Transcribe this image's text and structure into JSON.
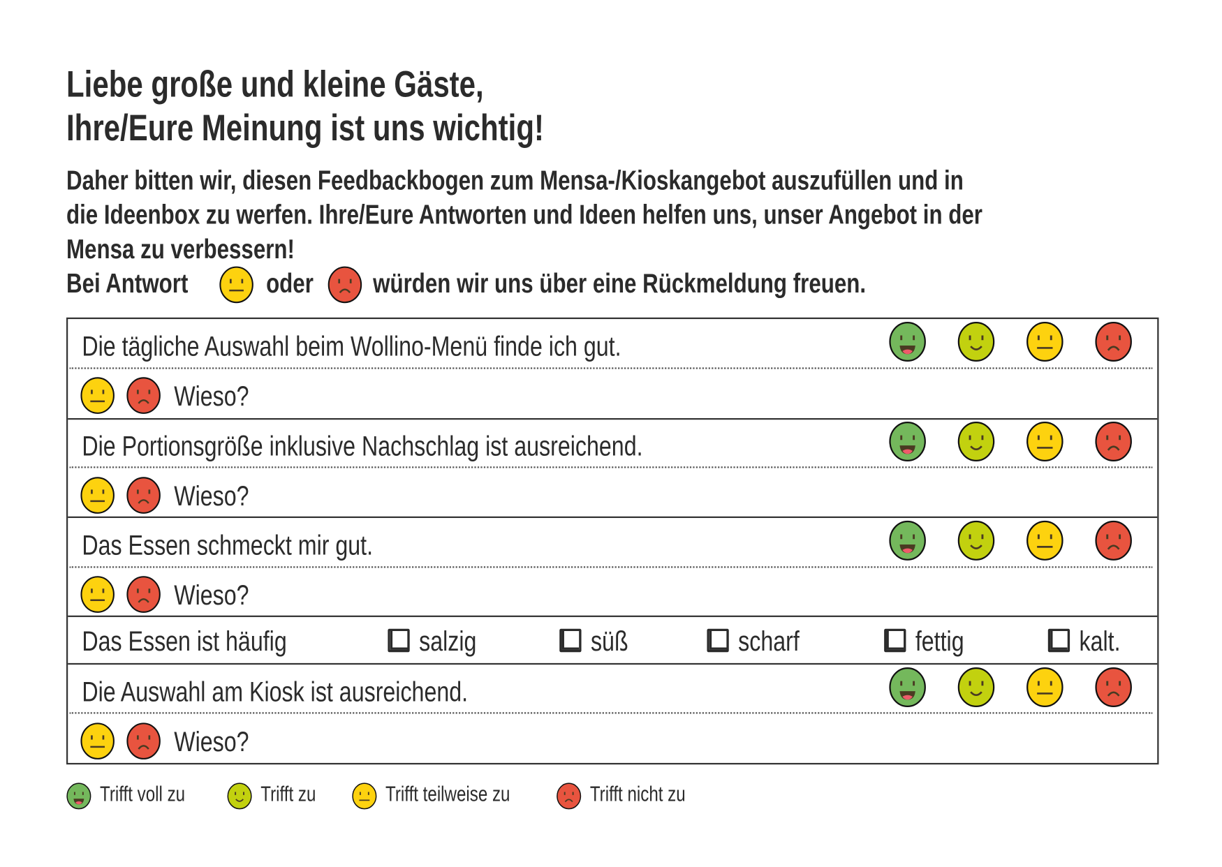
{
  "heading": {
    "line1": "Liebe große und kleine Gäste,",
    "line2": "Ihre/Eure Meinung ist uns wichtig!"
  },
  "intro": {
    "line1": "Daher bitten wir, diesen Feedbackbogen zum Mensa-/Kioskangebot auszufüllen und in",
    "line2": "die Ideenbox zu werfen. Ihre/Eure Antworten und Ideen helfen uns, unser Angebot in der",
    "line3": "Mensa zu verbessern!",
    "line4a": "Bei Antwort",
    "line4b": "oder",
    "line4c": "würden wir uns über eine Rückmeldung freuen."
  },
  "questions": [
    {
      "text": "Die tägliche Auswahl beim Wollino-Menü finde ich gut.",
      "why": "Wieso?"
    },
    {
      "text": "Die Portionsgröße inklusive Nachschlag ist ausreichend.",
      "why": "Wieso?"
    },
    {
      "text": "Das Essen schmeckt mir gut.",
      "why": "Wieso?"
    },
    {
      "text": "Die Auswahl am Kiosk ist ausreichend.",
      "why": "Wieso?"
    }
  ],
  "taste": {
    "label": "Das Essen ist häufig",
    "options": [
      "salzig",
      "süß",
      "scharf",
      "fettig",
      "kalt."
    ]
  },
  "legend": [
    {
      "icon": "very-happy-face",
      "label": "Trifft voll zu"
    },
    {
      "icon": "happy-face",
      "label": "Trifft zu"
    },
    {
      "icon": "neutral-face",
      "label": "Trifft teilweise zu"
    },
    {
      "icon": "sad-face",
      "label": "Trifft nicht zu"
    }
  ],
  "colors": {
    "very_happy": "#74b85c",
    "happy": "#c2d10f",
    "neutral": "#fdd20f",
    "sad": "#e8543f",
    "features": "#4a3b22",
    "tongue": "#ee5b6a"
  }
}
